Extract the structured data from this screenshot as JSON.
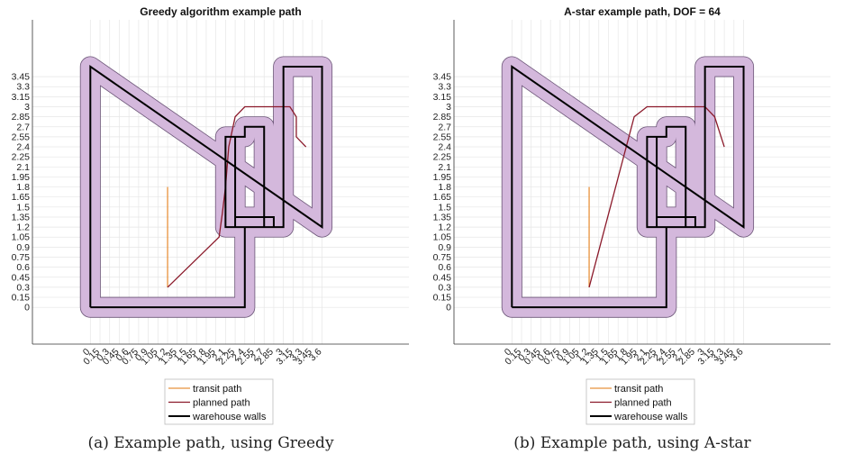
{
  "chart_data": [
    {
      "type": "line",
      "title": "Greedy algorithm example path",
      "caption": "(a) Example path, using Greedy",
      "xlim": [
        -0.9,
        4.95
      ],
      "ylim": [
        -0.55,
        4.3
      ],
      "xticks": [
        0,
        0.15,
        0.3,
        0.45,
        0.6,
        0.75,
        0.9,
        1.05,
        1.2,
        1.35,
        1.5,
        1.65,
        1.8,
        1.95,
        2.1,
        2.25,
        2.4,
        2.55,
        2.7,
        2.85,
        3,
        3.15,
        3.3,
        3.45,
        3.6
      ],
      "xtick_labels": [
        "0",
        "0.15",
        "0.3",
        "0.45",
        "0.6",
        "0.75",
        "0.9",
        "1.05",
        "1.2",
        "1.35",
        "1.5",
        "1.65",
        "1.8",
        "1.95",
        "2.1",
        "2.25",
        "2.4",
        "2.55",
        "2.7",
        "2.85",
        "3",
        "3.15",
        "3.3",
        "3.45",
        "3.6"
      ],
      "yticks": [
        0,
        0.15,
        0.3,
        0.45,
        0.6,
        0.75,
        0.9,
        1.05,
        1.2,
        1.35,
        1.5,
        1.65,
        1.8,
        1.95,
        2.1,
        2.25,
        2.4,
        2.55,
        2.7,
        2.85,
        3,
        3.15,
        3.3,
        3.45
      ],
      "ytick_labels": [
        "0",
        "0.15",
        "0.3",
        "0.45",
        "0.6",
        "0.75",
        "0.9",
        "1.05",
        "1.2",
        "1.35",
        "1.5",
        "1.65",
        "1.8",
        "1.95",
        "2.1",
        "2.25",
        "2.4",
        "2.55",
        "2.7",
        "2.85",
        "3",
        "3.15",
        "3.3",
        "3.45"
      ],
      "grid": true,
      "legend_position": "bottom-center",
      "series": [
        {
          "name": "transit path",
          "color": "#e8923c",
          "x": [
            1.2,
            1.2
          ],
          "y": [
            1.8,
            0.3
          ]
        },
        {
          "name": "planned path",
          "color": "#8b1a2b",
          "x": [
            1.2,
            2.0,
            2.05,
            2.1,
            2.15,
            2.25,
            2.4,
            2.55,
            2.7,
            2.85,
            3.0,
            3.1,
            3.2,
            3.2,
            3.35
          ],
          "y": [
            0.3,
            1.05,
            1.4,
            1.8,
            2.4,
            2.85,
            3.0,
            3.0,
            3.0,
            3.0,
            3.0,
            3.0,
            2.85,
            2.55,
            2.4
          ]
        },
        {
          "name": "warehouse walls",
          "color": "#000000",
          "x": [
            0,
            2.4,
            2.4,
            2.25,
            2.25,
            2.4,
            2.4,
            2.7,
            2.7,
            2.85,
            2.85,
            2.25,
            2.25,
            2.1,
            2.1,
            3.0,
            3.0,
            3.6,
            3.6,
            0,
            0
          ],
          "y": [
            0,
            0,
            1.2,
            1.2,
            2.55,
            2.55,
            2.7,
            2.7,
            1.2,
            1.2,
            1.35,
            1.35,
            2.55,
            2.55,
            1.2,
            1.2,
            3.6,
            3.6,
            1.2,
            3.6,
            0
          ]
        }
      ]
    },
    {
      "type": "line",
      "title": "A-star example path, DOF = 64",
      "caption": "(b) Example path, using A-star",
      "xlim": [
        -0.9,
        4.95
      ],
      "ylim": [
        -0.55,
        4.3
      ],
      "xticks": [
        0,
        0.15,
        0.3,
        0.45,
        0.6,
        0.75,
        0.9,
        1.05,
        1.2,
        1.35,
        1.5,
        1.65,
        1.8,
        1.95,
        2.1,
        2.25,
        2.4,
        2.55,
        2.7,
        2.85,
        3,
        3.15,
        3.3,
        3.45,
        3.6
      ],
      "xtick_labels": [
        "0",
        "0.15",
        "0.3",
        "0.45",
        "0.6",
        "0.75",
        "0.9",
        "1.05",
        "1.2",
        "1.35",
        "1.5",
        "1.65",
        "1.8",
        "1.95",
        "2.1",
        "2.25",
        "2.4",
        "2.55",
        "2.7",
        "2.85",
        "3",
        "3.15",
        "3.3",
        "3.45",
        "3.6"
      ],
      "yticks": [
        0,
        0.15,
        0.3,
        0.45,
        0.6,
        0.75,
        0.9,
        1.05,
        1.2,
        1.35,
        1.5,
        1.65,
        1.8,
        1.95,
        2.1,
        2.25,
        2.4,
        2.55,
        2.7,
        2.85,
        3,
        3.15,
        3.3,
        3.45
      ],
      "ytick_labels": [
        "0",
        "0.15",
        "0.3",
        "0.45",
        "0.6",
        "0.75",
        "0.9",
        "1.05",
        "1.2",
        "1.35",
        "1.5",
        "1.65",
        "1.8",
        "1.95",
        "2.1",
        "2.25",
        "2.4",
        "2.55",
        "2.7",
        "2.85",
        "3",
        "3.15",
        "3.3",
        "3.45"
      ],
      "grid": true,
      "legend_position": "bottom-center",
      "series": [
        {
          "name": "transit path",
          "color": "#e8923c",
          "x": [
            1.2,
            1.2
          ],
          "y": [
            1.8,
            0.3
          ]
        },
        {
          "name": "planned path",
          "color": "#8b1a2b",
          "x": [
            1.2,
            1.9,
            2.1,
            2.25,
            2.4,
            2.55,
            2.7,
            2.85,
            3.0,
            3.15,
            3.3
          ],
          "y": [
            0.3,
            2.85,
            3.0,
            3.0,
            3.0,
            3.0,
            3.0,
            3.0,
            3.0,
            2.85,
            2.4
          ]
        },
        {
          "name": "warehouse walls",
          "color": "#000000",
          "x": [
            0,
            2.4,
            2.4,
            2.25,
            2.25,
            2.4,
            2.4,
            2.7,
            2.7,
            2.85,
            2.85,
            2.25,
            2.25,
            2.1,
            2.1,
            3.0,
            3.0,
            3.6,
            3.6,
            0,
            0
          ],
          "y": [
            0,
            0,
            1.2,
            1.2,
            2.55,
            2.55,
            2.7,
            2.7,
            1.2,
            1.2,
            1.35,
            1.35,
            2.55,
            2.55,
            1.2,
            1.2,
            3.6,
            3.6,
            1.2,
            3.6,
            0
          ]
        }
      ]
    }
  ],
  "colors": {
    "inflation_fill": "#d4b8dc",
    "inflation_edge": "#6b5577",
    "grid": "#e6e6e6",
    "axis": "#333333"
  },
  "inflation_radius": 0.15
}
